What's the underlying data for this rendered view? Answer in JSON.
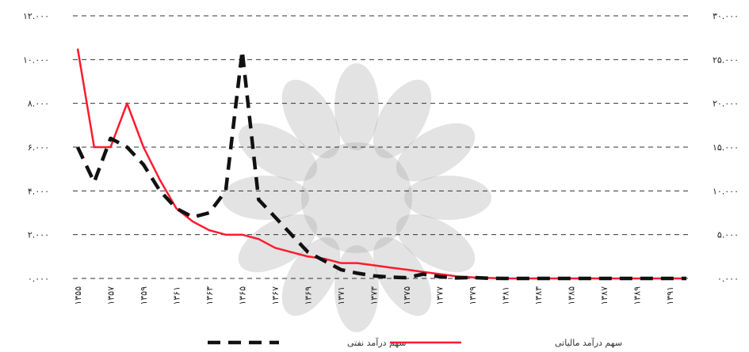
{
  "chart_data": {
    "type": "line",
    "x": [
      "۱۳۵۵",
      "۱۳۵۶",
      "۱۳۵۷",
      "۱۳۵۸",
      "۱۳۵۹",
      "۱۳۶۰",
      "۱۳۶۱",
      "۱۳۶۲",
      "۱۳۶۳",
      "۱۳۶۴",
      "۱۳۶۵",
      "۱۳۶۶",
      "۱۳۶۷",
      "۱۳۶۸",
      "۱۳۶۹",
      "۱۳۷۰",
      "۱۳۷۱",
      "۱۳۷۲",
      "۱۳۷۳",
      "۱۳۷۴",
      "۱۳۷۵",
      "۱۳۷۶",
      "۱۳۷۷",
      "۱۳۷۸",
      "۱۳۷۹",
      "۱۳۸۰",
      "۱۳۸۱",
      "۱۳۸۲",
      "۱۳۸۳",
      "۱۳۸۴",
      "۱۳۸۵",
      "۱۳۸۶",
      "۱۳۸۷",
      "۱۳۸۸",
      "۱۳۸۹",
      "۱۳۹۰",
      "۱۳۹۱",
      "۱۳۹۲"
    ],
    "x_tick_labels": [
      "۱۳۵۵",
      "۱۳۵۷",
      "۱۳۵۹",
      "۱۳۶۱",
      "۱۳۶۳",
      "۱۳۶۵",
      "۱۳۶۷",
      "۱۳۶۹",
      "۱۳۷۱",
      "۱۳۷۳",
      "۱۳۷۵",
      "۱۳۷۷",
      "۱۳۷۹",
      "۱۳۸۱",
      "۱۳۸۳",
      "۱۳۸۵",
      "۱۳۸۷",
      "۱۳۸۹",
      "۱۳۹۱"
    ],
    "y_left_ticks": [
      "۰.۰۰۰",
      "۲.۰۰۰",
      "۴.۰۰۰",
      "۶.۰۰۰",
      "۸.۰۰۰",
      "۱۰.۰۰۰",
      "۱۲.۰۰۰"
    ],
    "y_right_ticks": [
      "۰.۰۰۰",
      "۵.۰۰۰",
      "۱۰.۰۰۰",
      "۱۵.۰۰۰",
      "۲۰.۰۰۰",
      "۲۵.۰۰۰",
      "۳۰.۰۰۰"
    ],
    "ylim_left": [
      0,
      12000
    ],
    "ylim_right": [
      0,
      30000
    ],
    "grid": true,
    "legend_position": "bottom",
    "series": [
      {
        "name": "سهم درآمد مالیاتی",
        "axis": "left",
        "color": "#ff1a2e",
        "style": "solid",
        "values": [
          10500,
          6000,
          6000,
          8000,
          6000,
          4500,
          3200,
          2600,
          2200,
          2000,
          2000,
          1800,
          1400,
          1200,
          1000,
          900,
          700,
          700,
          600,
          500,
          400,
          300,
          200,
          100,
          50,
          20,
          0,
          0,
          0,
          0,
          0,
          0,
          0,
          0,
          0,
          0,
          0,
          0
        ]
      },
      {
        "name": "سهم درآمد نفتی",
        "axis": "right",
        "color": "#111111",
        "style": "dashed",
        "values": [
          15000,
          11000,
          16000,
          15000,
          13000,
          10000,
          8000,
          7000,
          7500,
          10000,
          26000,
          9000,
          7000,
          5000,
          3000,
          2000,
          1000,
          600,
          300,
          150,
          80,
          500,
          200,
          50,
          100,
          20,
          0,
          0,
          0,
          0,
          0,
          0,
          0,
          0,
          0,
          0,
          0,
          0
        ]
      }
    ]
  }
}
